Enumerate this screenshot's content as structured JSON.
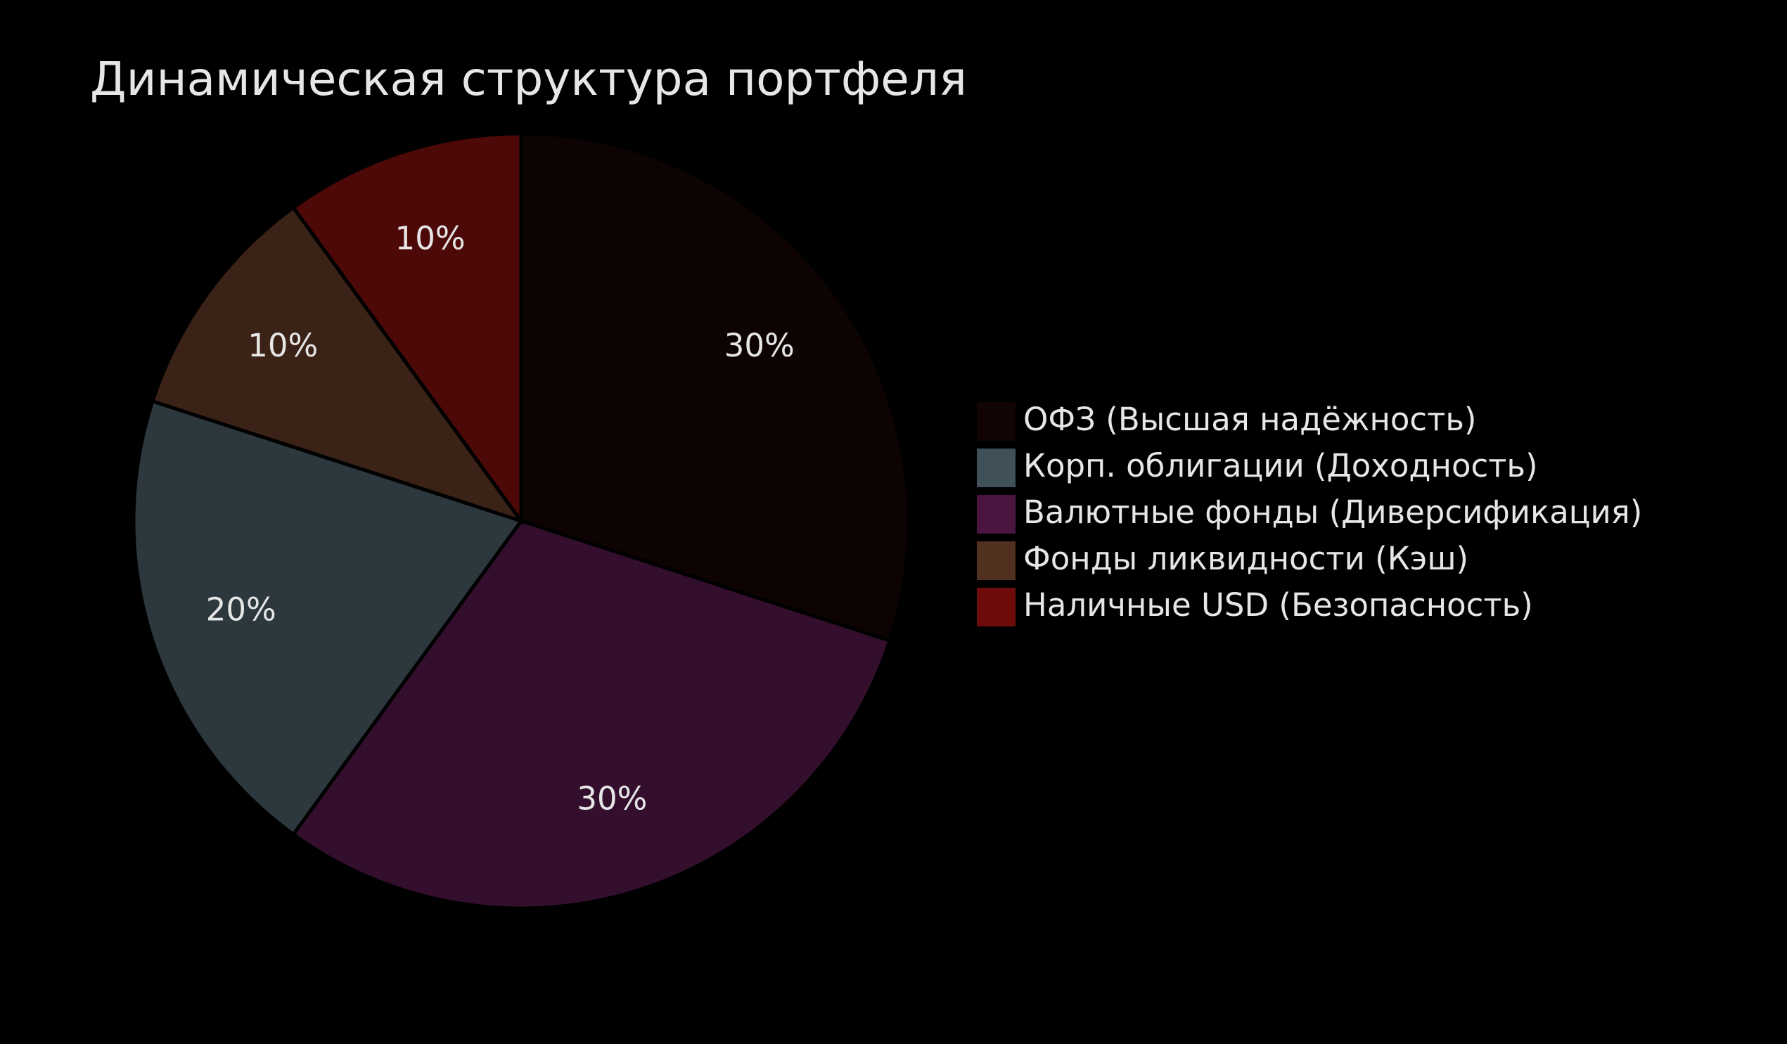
{
  "chart_data": {
    "type": "pie",
    "title": "Динамическая структура портфеля",
    "categories": [
      "ОФЗ (Высшая надёжность)",
      "Корп. облигации (Доходность)",
      "Валютные фонды (Диверсификация)",
      "Фонды ликвидности (Кэш)",
      "Наличные USD (Безопасность)"
    ],
    "values": [
      30,
      20,
      30,
      10,
      10
    ],
    "value_labels": [
      "30%",
      "20%",
      "30%",
      "10%",
      "10%"
    ],
    "colors": [
      "#120404",
      "#3f5059",
      "#4a1640",
      "#52301f",
      "#6e0b0b"
    ],
    "legend": "right"
  }
}
